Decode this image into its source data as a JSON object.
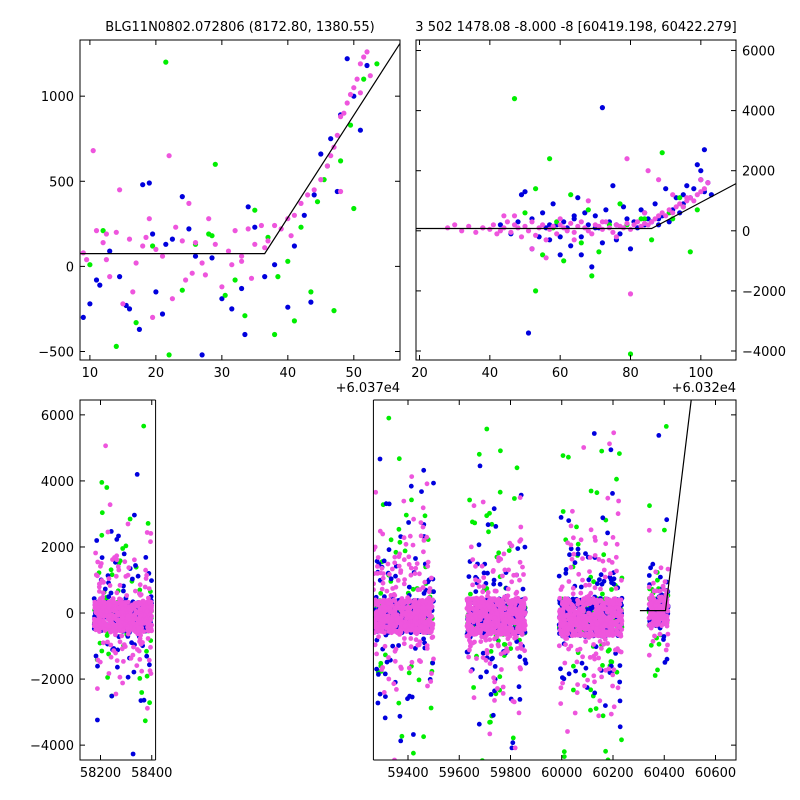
{
  "colors": {
    "blue": "#0000dd",
    "green": "#00ee00",
    "magenta": "#ee55dd"
  },
  "chart_data": [
    {
      "id": "top-left",
      "type": "scatter",
      "title": "BLG11N0802.072806 (8172.80, 1380.55)",
      "x_offset_label": "+6.037e4",
      "xlim": [
        8.5,
        57
      ],
      "ylim": [
        -550,
        1330
      ],
      "xticks": [
        10,
        20,
        30,
        40,
        50
      ],
      "yticks": [
        -500,
        0,
        500,
        1000
      ],
      "y_axis_side": "left",
      "model": [
        [
          8.5,
          75
        ],
        [
          36.5,
          75
        ],
        [
          57,
          1310
        ]
      ],
      "series": [
        {
          "color": "blue",
          "x": [
            9,
            10,
            11.5,
            13,
            14.5,
            16,
            17.5,
            18,
            19.5,
            20,
            21,
            22.5,
            24,
            25,
            27,
            28.5,
            30,
            31.5,
            33,
            34,
            35,
            36.5,
            38,
            40,
            41,
            42.5,
            44,
            45,
            46.5,
            48,
            49,
            50,
            51,
            52,
            47.5,
            43.5,
            33.5,
            26,
            21.5,
            15.5,
            11,
            19
          ],
          "y": [
            -300,
            -220,
            -110,
            90,
            -60,
            -250,
            -370,
            480,
            190,
            -150,
            -280,
            160,
            410,
            220,
            -520,
            50,
            -190,
            -250,
            -130,
            350,
            230,
            -60,
            10,
            -240,
            120,
            300,
            420,
            660,
            750,
            890,
            1220,
            1000,
            800,
            1180,
            440,
            -210,
            -400,
            60,
            130,
            -230,
            -80,
            490
          ]
        },
        {
          "color": "green",
          "x": [
            10,
            12,
            14,
            17,
            19.5,
            21.5,
            24,
            26,
            28,
            29,
            30.5,
            32,
            33.5,
            35,
            37,
            38.5,
            40,
            41,
            42,
            43.5,
            44.5,
            45.5,
            47,
            48,
            49.5,
            50,
            51.5,
            53.5,
            46,
            22,
            28.5,
            38
          ],
          "y": [
            10,
            210,
            -470,
            -330,
            120,
            1200,
            -140,
            130,
            190,
            600,
            -170,
            -80,
            -290,
            330,
            170,
            -60,
            30,
            -320,
            230,
            -150,
            380,
            510,
            -260,
            620,
            830,
            340,
            1100,
            1190,
            590,
            -520,
            180,
            -400
          ]
        },
        {
          "color": "magenta",
          "x": [
            9,
            9.5,
            10.5,
            11,
            12,
            12.5,
            13,
            14,
            14.5,
            15,
            16,
            16.5,
            17,
            18,
            19,
            19.5,
            20,
            21,
            22,
            22.5,
            23,
            24,
            24.5,
            25,
            26,
            27,
            27.5,
            28,
            29,
            30,
            31,
            31.5,
            32,
            33,
            34,
            34.5,
            35,
            36,
            36.5,
            37,
            38,
            39,
            40,
            41,
            42,
            43,
            44,
            45,
            46,
            46.5,
            47,
            47.5,
            48,
            48.5,
            49,
            49.5,
            50,
            50.5,
            51,
            51.5,
            52,
            52.5,
            12.5,
            18.5,
            25.5,
            33,
            40.5,
            48,
            51
          ],
          "y": [
            80,
            40,
            680,
            210,
            140,
            40,
            -60,
            200,
            450,
            -220,
            160,
            -150,
            20,
            120,
            280,
            -300,
            100,
            60,
            650,
            -190,
            230,
            150,
            -80,
            370,
            140,
            20,
            -50,
            280,
            130,
            -120,
            90,
            10,
            210,
            30,
            220,
            -70,
            130,
            240,
            110,
            150,
            240,
            220,
            280,
            300,
            370,
            420,
            450,
            510,
            590,
            650,
            700,
            770,
            880,
            900,
            960,
            1010,
            1050,
            1100,
            1190,
            1230,
            1260,
            1120,
            190,
            170,
            -40,
            60,
            180,
            440,
            1020
          ]
        }
      ]
    },
    {
      "id": "top-right",
      "type": "scatter",
      "title": "3 502 1478.08 -8.000 -8 [60419.198, 60422.279]",
      "x_offset_label": "+6.032e4",
      "xlim": [
        19,
        110
      ],
      "ylim": [
        -4300,
        6350
      ],
      "xticks": [
        20,
        40,
        60,
        80,
        100
      ],
      "yticks": [
        -4000,
        -2000,
        0,
        2000,
        4000,
        6000
      ],
      "y_axis_side": "right",
      "model": [
        [
          19,
          75
        ],
        [
          86,
          75
        ],
        [
          110,
          1570
        ]
      ],
      "series": [
        {
          "color": "blue",
          "x": [
            43,
            46,
            48,
            50,
            51,
            52,
            54,
            55,
            56,
            57,
            58,
            59,
            60,
            61,
            62,
            63,
            64,
            65,
            66,
            67,
            68,
            69,
            70,
            71,
            72,
            73,
            74,
            75,
            76,
            77,
            78,
            79,
            80,
            81,
            82,
            83,
            84,
            85,
            86,
            87,
            88,
            89,
            90,
            91,
            92,
            93,
            94,
            95,
            96,
            97,
            98,
            99,
            100,
            101,
            102,
            103,
            49,
            52,
            60,
            64,
            70,
            76,
            84,
            88,
            95,
            100,
            101,
            72,
            66,
            57
          ],
          "y": [
            200,
            -100,
            300,
            1300,
            -3400,
            400,
            -200,
            600,
            100,
            -300,
            900,
            200,
            -800,
            300,
            100,
            -500,
            400,
            1100,
            -200,
            600,
            200,
            -1200,
            500,
            100,
            -400,
            700,
            300,
            1500,
            200,
            -100,
            800,
            400,
            -600,
            300,
            100,
            700,
            200,
            400,
            300,
            900,
            200,
            500,
            1400,
            300,
            700,
            1100,
            600,
            900,
            1500,
            1100,
            1400,
            2200,
            2000,
            2700,
            1600,
            1200,
            1200,
            -600,
            -200,
            500,
            100,
            -300,
            600,
            400,
            1200,
            1700,
            1300,
            4100,
            -800,
            200
          ]
        },
        {
          "color": "green",
          "x": [
            47,
            50,
            53,
            55,
            57,
            59,
            61,
            63,
            66,
            68,
            71,
            74,
            77,
            80,
            83,
            86,
            89,
            91,
            94,
            97,
            99,
            53,
            79,
            69,
            58,
            84,
            92,
            95
          ],
          "y": [
            4400,
            600,
            -2000,
            -800,
            2400,
            300,
            -1000,
            1200,
            -400,
            700,
            -700,
            200,
            900,
            -4100,
            400,
            -300,
            2600,
            600,
            1100,
            -700,
            700,
            1400,
            200,
            -1500,
            100,
            400,
            400,
            800
          ]
        },
        {
          "color": "magenta",
          "x": [
            28,
            30,
            32,
            34,
            36,
            38,
            40,
            41,
            42,
            43,
            44,
            45,
            46,
            47,
            48,
            49,
            50,
            51,
            52,
            53,
            54,
            55,
            56,
            57,
            58,
            59,
            60,
            61,
            62,
            63,
            64,
            65,
            66,
            67,
            68,
            69,
            70,
            71,
            72,
            73,
            74,
            75,
            76,
            77,
            78,
            79,
            80,
            81,
            82,
            83,
            84,
            85,
            86,
            87,
            88,
            89,
            90,
            91,
            92,
            93,
            94,
            95,
            96,
            97,
            98,
            99,
            100,
            101,
            102,
            44,
            52,
            60,
            68,
            76,
            84,
            92,
            100,
            56,
            64,
            72,
            80,
            88,
            96,
            38,
            47,
            79,
            85
          ],
          "y": [
            100,
            200,
            0,
            150,
            -50,
            100,
            50,
            200,
            -100,
            0,
            100,
            300,
            -50,
            200,
            100,
            -200,
            150,
            0,
            300,
            -150,
            100,
            200,
            -300,
            50,
            150,
            -100,
            200,
            100,
            0,
            250,
            -50,
            150,
            300,
            100,
            0,
            -100,
            200,
            150,
            50,
            300,
            100,
            -50,
            200,
            150,
            100,
            250,
            50,
            200,
            300,
            150,
            250,
            200,
            300,
            400,
            500,
            600,
            500,
            700,
            600,
            800,
            900,
            800,
            1000,
            1100,
            1000,
            1200,
            1300,
            1400,
            1600,
            500,
            -600,
            400,
            1000,
            -200,
            600,
            1200,
            1700,
            -900,
            -300,
            300,
            -2100,
            1700,
            1100,
            100,
            500,
            2400,
            2000
          ]
        }
      ]
    },
    {
      "id": "bottom",
      "type": "scatter",
      "title": "",
      "x_offset_label": "",
      "xlim": [
        58120,
        60680
      ],
      "ylim": [
        -4450,
        6450
      ],
      "xticks": [
        58200,
        58400,
        59400,
        59600,
        59800,
        60000,
        60200,
        60400,
        60600
      ],
      "yticks": [
        -4000,
        -2000,
        0,
        2000,
        4000,
        6000
      ],
      "y_axis_side": "left",
      "break_region": [
        58415,
        59265
      ],
      "season_clusters": [
        {
          "x": [
            58175,
            58400
          ],
          "core_y": [
            -550,
            350
          ],
          "spread": 2300,
          "outliers": 4
        },
        {
          "x": [
            59265,
            59500
          ],
          "core_y": [
            -600,
            400
          ],
          "spread": 2800,
          "outliers": 5
        },
        {
          "x": [
            59630,
            59860
          ],
          "core_y": [
            -650,
            450
          ],
          "spread": 2800,
          "outliers": 5
        },
        {
          "x": [
            59990,
            60235
          ],
          "core_y": [
            -700,
            450
          ],
          "spread": 3000,
          "outliers": 5
        },
        {
          "x": [
            60340,
            60415
          ],
          "core_y": [
            -400,
            500
          ],
          "spread": 1600,
          "outliers": 2
        }
      ],
      "model": [
        [
          60305,
          75
        ],
        [
          60405,
          75
        ],
        [
          60505,
          6450
        ]
      ]
    }
  ]
}
